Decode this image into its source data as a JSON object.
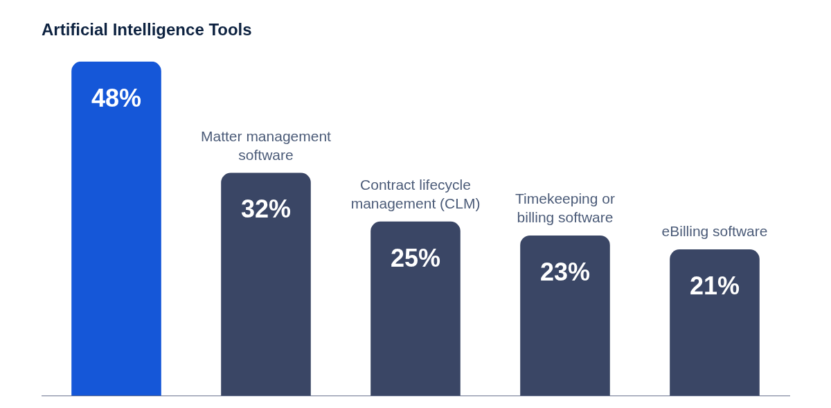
{
  "chart_data": {
    "type": "bar",
    "title": "Artificial Intelligence Tools",
    "categories": [
      null,
      "Matter management software",
      "Contract lifecycle management (CLM)",
      "Timekeeping or billing software",
      "eBilling software"
    ],
    "values": [
      48,
      32,
      25,
      23,
      21
    ],
    "colors": [
      "#1557d8",
      "#3a4665",
      "#3a4665",
      "#3a4665",
      "#3a4665"
    ],
    "data_labels": true,
    "value_labels": [
      "48%",
      "32%",
      "25%",
      "23%",
      "21%"
    ],
    "grid": false,
    "legend": false
  }
}
